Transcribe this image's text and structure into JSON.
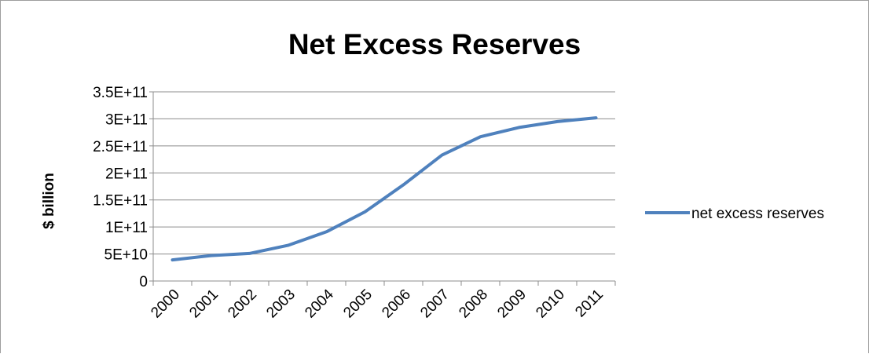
{
  "chart_data": {
    "type": "line",
    "title": "Net Excess Reserves",
    "xlabel": "",
    "ylabel": "$ billion",
    "categories": [
      "2000",
      "2001",
      "2002",
      "2003",
      "2004",
      "2005",
      "2006",
      "2007",
      "2008",
      "2009",
      "2010",
      "2011"
    ],
    "y_tick_labels": [
      "0",
      "5E+10",
      "1E+11",
      "1.5E+11",
      "2E+11",
      "2.5E+11",
      "3E+11",
      "3.5E+11"
    ],
    "ylim": [
      0,
      350000000000
    ],
    "ytick_step": 50000000000,
    "grid": true,
    "legend_position": "right",
    "series": [
      {
        "name": "net excess reserves",
        "color": "#4f81bd",
        "values": [
          39000000000,
          47000000000,
          51000000000,
          66000000000,
          91000000000,
          128000000000,
          178000000000,
          233000000000,
          267000000000,
          284000000000,
          295000000000,
          302000000000
        ]
      }
    ]
  }
}
